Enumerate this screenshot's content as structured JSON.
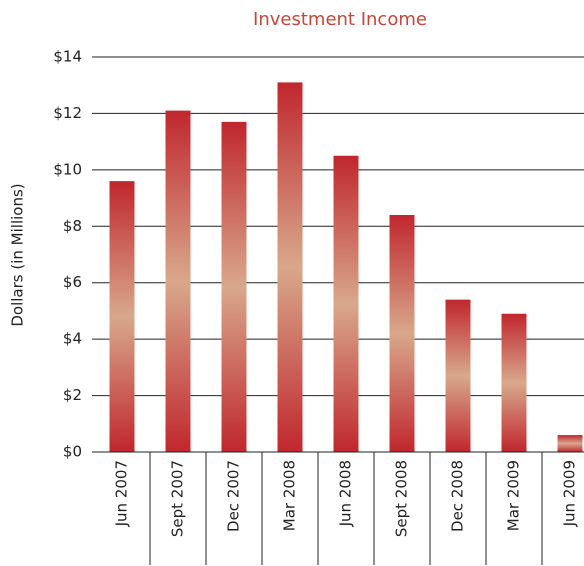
{
  "chart_data": {
    "type": "bar",
    "title": "Investment Income",
    "y_label": "Dollars (in Millions)",
    "categories": [
      "Jun 2007",
      "Sept 2007",
      "Dec 2007",
      "Mar 2008",
      "Jun 2008",
      "Sept 2008",
      "Dec 2008",
      "Mar 2009",
      "Jun 2009"
    ],
    "values": [
      9.6,
      12.1,
      11.7,
      13.1,
      10.5,
      8.4,
      5.4,
      4.9,
      0.6
    ],
    "color": "#c0272d",
    "ylim": [
      0,
      14
    ],
    "yticks": [
      {
        "value": 0,
        "label": "$0"
      },
      {
        "value": 2,
        "label": "$2"
      },
      {
        "value": 4,
        "label": "$4"
      },
      {
        "value": 6,
        "label": "$6"
      },
      {
        "value": 8,
        "label": "$8"
      },
      {
        "value": 10,
        "label": "$10"
      },
      {
        "value": 12,
        "label": "$12"
      },
      {
        "value": 14,
        "label": "$14"
      }
    ],
    "grid": true
  }
}
